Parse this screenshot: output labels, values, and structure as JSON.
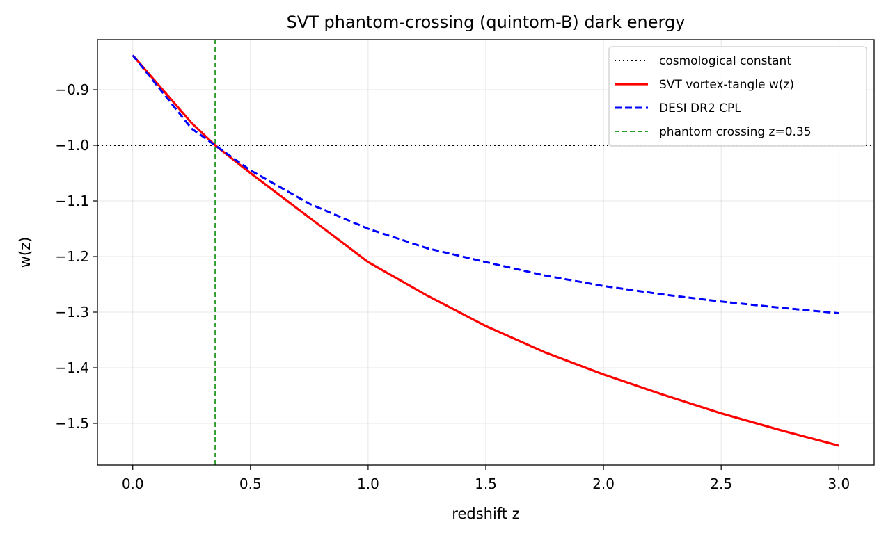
{
  "chart_data": {
    "type": "line",
    "title": "SVT phantom-crossing (quintom-B) dark energy",
    "xlabel": "redshift z",
    "ylabel": "w(z)",
    "xlim": [
      -0.15,
      3.15
    ],
    "ylim": [
      -1.575,
      -0.81
    ],
    "grid": true,
    "legend_position": "top-right",
    "x_ticks": [
      0.0,
      0.5,
      1.0,
      1.5,
      2.0,
      2.5,
      3.0
    ],
    "x_tick_labels": [
      "0.0",
      "0.5",
      "1.0",
      "1.5",
      "2.0",
      "2.5",
      "3.0"
    ],
    "y_ticks": [
      -0.9,
      -1.0,
      -1.1,
      -1.2,
      -1.3,
      -1.4,
      -1.5
    ],
    "y_tick_labels": [
      "−0.9",
      "−1.0",
      "−1.1",
      "−1.2",
      "−1.3",
      "−1.4",
      "−1.5"
    ],
    "series": [
      {
        "name": "cosmological constant",
        "style": "dotted",
        "color": "#000000",
        "x": [
          -0.15,
          3.15
        ],
        "y": [
          -1.0,
          -1.0
        ]
      },
      {
        "name": "SVT vortex-tangle w(z)",
        "style": "solid",
        "color": "#ff0000",
        "x": [
          0.0,
          0.25,
          0.35,
          0.5,
          0.75,
          1.0,
          1.25,
          1.5,
          1.75,
          2.0,
          2.25,
          2.5,
          2.75,
          3.0
        ],
        "y": [
          -0.838,
          -0.96,
          -1.0,
          -1.05,
          -1.13,
          -1.21,
          -1.27,
          -1.325,
          -1.372,
          -1.412,
          -1.448,
          -1.482,
          -1.512,
          -1.54
        ]
      },
      {
        "name": "DESI DR2 CPL",
        "style": "dashed",
        "color": "#0000ff",
        "x": [
          0.0,
          0.25,
          0.35,
          0.5,
          0.75,
          1.0,
          1.25,
          1.5,
          1.75,
          2.0,
          2.25,
          2.5,
          2.75,
          3.0
        ],
        "y": [
          -0.838,
          -0.97,
          -1.0,
          -1.045,
          -1.105,
          -1.15,
          -1.185,
          -1.21,
          -1.234,
          -1.253,
          -1.268,
          -1.281,
          -1.292,
          -1.302
        ]
      },
      {
        "name": "phantom crossing z=0.35",
        "style": "dashed",
        "color": "#2ca02c",
        "x": [
          0.35,
          0.35
        ],
        "y": [
          -1.575,
          -0.81
        ]
      }
    ]
  }
}
